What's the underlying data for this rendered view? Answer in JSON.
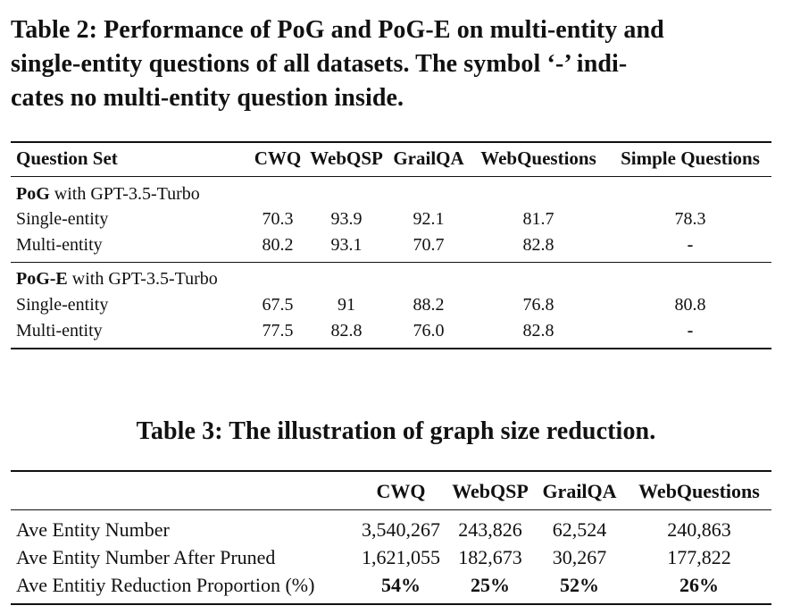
{
  "table2": {
    "caption_lines": [
      "Table 2: Performance of PoG and PoG-E on multi-entity and",
      "single-entity questions of all datasets. The symbol ‘-’ indi-",
      "cates no multi-entity question inside."
    ],
    "header": [
      "Question Set",
      "CWQ",
      "WebQSP",
      "GrailQA",
      "WebQuestions",
      "Simple Questions"
    ],
    "groups": [
      {
        "name_bold": "PoG",
        "name_rest": " with GPT-3.5-Turbo",
        "rows": [
          {
            "label": "Single-entity",
            "values": [
              "70.3",
              "93.9",
              "92.1",
              "81.7",
              "78.3"
            ]
          },
          {
            "label": "Multi-entity",
            "values": [
              "80.2",
              "93.1",
              "70.7",
              "82.8",
              "-"
            ]
          }
        ]
      },
      {
        "name_bold": "PoG-E",
        "name_rest": " with GPT-3.5-Turbo",
        "rows": [
          {
            "label": "Single-entity",
            "values": [
              "67.5",
              "91",
              "88.2",
              "76.8",
              "80.8"
            ]
          },
          {
            "label": "Multi-entity",
            "values": [
              "77.5",
              "82.8",
              "76.0",
              "82.8",
              "-"
            ]
          }
        ]
      }
    ]
  },
  "table3": {
    "caption": "Table 3: The illustration of graph size reduction.",
    "header": [
      "",
      "CWQ",
      "WebQSP",
      "GrailQA",
      "WebQuestions"
    ],
    "rows": [
      {
        "label": "Ave Entity Number",
        "values": [
          "3,540,267",
          "243,826",
          "62,524",
          "240,863"
        ],
        "bold": false
      },
      {
        "label": "Ave Entity Number After Pruned",
        "values": [
          "1,621,055",
          "182,673",
          "30,267",
          "177,822"
        ],
        "bold": false
      },
      {
        "label": "Ave Entitiy Reduction Proportion (%)",
        "values": [
          "54%",
          "25%",
          "52%",
          "26%"
        ],
        "bold": true
      }
    ]
  }
}
